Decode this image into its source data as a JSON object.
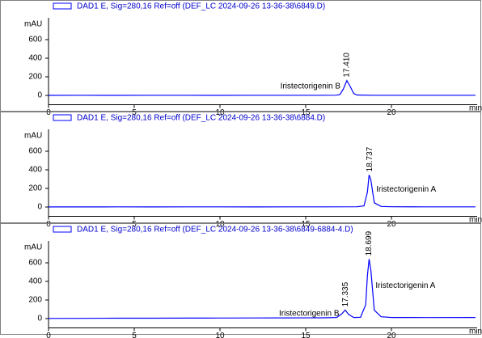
{
  "chart_data": [
    {
      "type": "line",
      "y_label": "mAU",
      "x_label": "min",
      "xlim": [
        0,
        25
      ],
      "ylim": [
        -100,
        800
      ],
      "xticks": [
        0,
        5,
        10,
        15,
        20
      ],
      "yticks": [
        0,
        200,
        400,
        600
      ],
      "series": [
        {
          "name": "DAD1 E, Sig=280,16 Ref=off (DEF_LC 2024-09-26 13-36-38\\6849.D)",
          "color": "#0000ff",
          "x": [
            0,
            2,
            4,
            6,
            8,
            10,
            12,
            14,
            16,
            16.8,
            17.0,
            17.2,
            17.4,
            17.6,
            17.8,
            18.0,
            19,
            20,
            22,
            24.9
          ],
          "values": [
            1,
            2,
            1,
            2,
            2,
            1,
            2,
            2,
            2,
            3,
            10,
            70,
            160,
            95,
            20,
            4,
            2,
            2,
            2,
            2
          ]
        }
      ],
      "peaks": [
        {
          "x": 17.41,
          "label": "17.410",
          "height": 160,
          "compound": "Iristectorigenin B"
        }
      ]
    },
    {
      "type": "line",
      "y_label": "mAU",
      "x_label": "min",
      "xlim": [
        0,
        25
      ],
      "ylim": [
        -100,
        800
      ],
      "xticks": [
        0,
        5,
        10,
        15,
        20
      ],
      "yticks": [
        0,
        200,
        400,
        600
      ],
      "series": [
        {
          "name": "DAD1 E, Sig=280,16 Ref=off (DEF_LC 2024-09-26 13-36-38\\6884.D)",
          "color": "#0000ff",
          "x": [
            0,
            2,
            4,
            6,
            8,
            10,
            12,
            14,
            16,
            18,
            18.4,
            18.6,
            18.7,
            18.8,
            19.0,
            19.4,
            20,
            22,
            24.9
          ],
          "values": [
            1,
            1,
            2,
            1,
            2,
            2,
            1,
            2,
            2,
            3,
            12,
            160,
            345,
            290,
            45,
            6,
            3,
            2,
            2
          ]
        }
      ],
      "peaks": [
        {
          "x": 18.737,
          "label": "18.737",
          "height": 345,
          "compound": "Iristectorigenin A"
        }
      ]
    },
    {
      "type": "line",
      "y_label": "mAU",
      "x_label": "min",
      "xlim": [
        0,
        25
      ],
      "ylim": [
        -100,
        800
      ],
      "xticks": [
        0,
        5,
        10,
        15,
        20
      ],
      "yticks": [
        0,
        200,
        400,
        600
      ],
      "series": [
        {
          "name": "DAD1 E, Sig=280,16 Ref=off (DEF_LC 2024-09-26 13-36-38\\6849-6884-4.D)",
          "color": "#0000ff",
          "x": [
            0,
            2,
            4,
            6,
            8,
            10,
            12,
            14,
            16,
            16.8,
            17.1,
            17.3,
            17.5,
            17.8,
            18.2,
            18.5,
            18.6,
            18.7,
            18.8,
            19.0,
            19.4,
            20,
            22,
            24.9
          ],
          "values": [
            2,
            3,
            4,
            4,
            5,
            6,
            7,
            8,
            9,
            12,
            50,
            92,
            45,
            12,
            14,
            150,
            460,
            640,
            520,
            90,
            20,
            12,
            11,
            12
          ]
        }
      ],
      "peaks": [
        {
          "x": 17.335,
          "label": "17.335",
          "height": 92,
          "compound": "Iristectorigenin B"
        },
        {
          "x": 18.699,
          "label": "18.699",
          "height": 640,
          "compound": "Iristectorigenin A"
        }
      ]
    }
  ]
}
